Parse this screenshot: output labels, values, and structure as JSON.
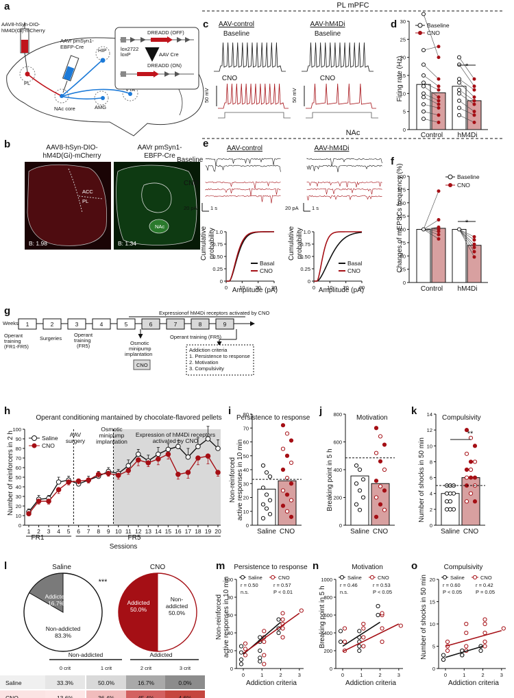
{
  "panel_labels": {
    "a": "a",
    "b": "b",
    "c": "c",
    "d": "d",
    "e": "e",
    "f": "f",
    "g": "g",
    "h": "h",
    "i": "i",
    "j": "j",
    "k": "k",
    "l": "l",
    "m": "m",
    "n": "n",
    "o": "o"
  },
  "headers": {
    "pl_mpfc": "PL mPFC",
    "nac": "NAc"
  },
  "colors": {
    "cno_red": "#a50f15",
    "cno_fill": "#d8a0a0",
    "gray_bg": "#d9d9d9",
    "ctrl_trace": "#111111"
  },
  "a": {
    "inj_gi": [
      "AAV8-hSyn-DIO-",
      "hM4D(Gi)-mCherry"
    ],
    "inj_cre": [
      "AAVr pmSyn1-",
      "EBFP-Cre"
    ],
    "dreadd_off": "DREADD (OFF)",
    "dreadd_on": "DREADD (ON)",
    "lox2722": "lox2722",
    "loxp": "loxP",
    "aav_cre": "AAV Cre",
    "regions": {
      "pl": "PL",
      "hip": "HIP",
      "vta": "VTA",
      "amg": "AMG",
      "nac_core": "NAc core"
    }
  },
  "b": {
    "title_left": [
      "AAV8-hSyn-DIO-",
      "hM4D(Gi)-mCherry"
    ],
    "title_right": [
      "AAVr pmSyn1-",
      "EBFP-Cre"
    ],
    "bregma_left": "B: 1.98",
    "bregma_right": "B: 1.34",
    "small": {
      "acc": "ACC",
      "pl": "PL",
      "nac": "NAc"
    }
  },
  "c": {
    "ctrl_title": "AAV-control",
    "hm4di_title": "AAV-hM4Di",
    "baseline": "Baseline",
    "cno": "CNO",
    "scale": "50 mV"
  },
  "d": {
    "legend": {
      "baseline": "Baseline",
      "cno": "CNO"
    },
    "ylabel": "Firing rate (Hz)",
    "ticks": [
      "0",
      "5",
      "10",
      "15",
      "20",
      "25",
      "30"
    ],
    "groups": [
      "Control",
      "hM4Di"
    ],
    "sig": "*",
    "bars": {
      "control_baseline": 12.5,
      "control_cno": 10.2,
      "hm4di_baseline": 12.0,
      "hm4di_cno": 8.0
    }
  },
  "e": {
    "ctrl_title": "AAV-control",
    "hm4di_title": "AAV-hM4Di",
    "baseline": "Baseline",
    "cno": "CNO",
    "scale_pa": "20 pA",
    "scale_s": "1 s",
    "ylabel": [
      "Cumulative",
      "probability"
    ],
    "xlabel": "Amplitude (pA)",
    "yticks": [
      "0",
      "0.25",
      "0.50",
      "0.75",
      "1.0"
    ],
    "xticks": [
      "0",
      "10",
      "20",
      "30"
    ],
    "legend": {
      "basal": "Basal",
      "cno": "CNO"
    }
  },
  "f": {
    "legend": {
      "baseline": "Baseline",
      "cno": "CNO"
    },
    "ylabel": "Changes of mEPSCs frequency (%)",
    "ticks": [
      "0",
      "25",
      "50",
      "75",
      "100",
      "125",
      "150",
      "175",
      "200"
    ],
    "groups": [
      "Control",
      "hM4Di"
    ],
    "sig": "*",
    "bars": {
      "control_baseline": 100,
      "control_cno": 102,
      "hm4di_baseline": 100,
      "hm4di_cno": 70
    }
  },
  "g": {
    "weeks_label": "Weeks",
    "weeks": [
      "1",
      "2",
      "3",
      "4",
      "5",
      "6",
      "7",
      "8",
      "9"
    ],
    "expression_label": "Expressionof hM4Di receptors activated by CNO",
    "op1": [
      "Operant",
      "training",
      "(FR1-FR5)"
    ],
    "surgeries": "Surgeries",
    "op3": [
      "Operant",
      "training",
      "(FR5)"
    ],
    "osmotic": [
      "Osmotic",
      "minipump",
      "implantation"
    ],
    "cno_box": "CNO",
    "op_fr5": "Operant training (FR5)",
    "criteria": [
      "Addiction criteria",
      "1. Persistence to response",
      "2. Motivation",
      "3. Compulsivity"
    ]
  },
  "h": {
    "title": "Operant conditioning mantained by chocolate-flavored pellets",
    "ylabel": "Number of reinforcers in 2 h",
    "yticks": [
      "0",
      "10",
      "20",
      "30",
      "40",
      "50",
      "60",
      "70",
      "80",
      "90",
      "100"
    ],
    "legend": {
      "saline": "Saline",
      "cno": "CNO"
    },
    "aav": [
      "AAV",
      "surgery"
    ],
    "osmotic": [
      "Osmotic",
      "minipump",
      "implantation"
    ],
    "expr": [
      "Expression of hM4Di receptors",
      "activated by CNO"
    ],
    "fr1": "FR1",
    "fr5": "FR5",
    "xlabel": "Sessions"
  },
  "chart_data": [
    {
      "type": "line",
      "panel": "h",
      "x": [
        1,
        2,
        3,
        4,
        5,
        6,
        7,
        8,
        9,
        10,
        11,
        12,
        13,
        14,
        15,
        16,
        17,
        18,
        19,
        20
      ],
      "series": [
        {
          "name": "Saline",
          "values": [
            14,
            27,
            28,
            45,
            47,
            43,
            47,
            51,
            56,
            54,
            62,
            74,
            67,
            74,
            79,
            82,
            71,
            82,
            90,
            80
          ],
          "err": [
            3,
            4,
            3,
            5,
            4,
            3,
            4,
            5,
            4,
            4,
            6,
            5,
            6,
            7,
            6,
            6,
            9,
            9,
            13,
            9
          ]
        },
        {
          "name": "CNO",
          "values": [
            12,
            25,
            25,
            37,
            45,
            46,
            47,
            53,
            54,
            52,
            57,
            68,
            65,
            69,
            74,
            53,
            55,
            70,
            72,
            55
          ],
          "err": [
            2,
            3,
            3,
            4,
            3,
            3,
            3,
            3,
            3,
            4,
            4,
            6,
            4,
            6,
            5,
            5,
            6,
            7,
            8,
            4
          ]
        }
      ],
      "xlabel": "Sessions",
      "ylabel": "Number of reinforcers in 2 h",
      "ylim": [
        0,
        100
      ]
    },
    {
      "type": "bar",
      "panel": "i",
      "title": "Persistence to response",
      "categories": [
        "Saline",
        "CNO"
      ],
      "values": [
        26,
        32
      ],
      "ylabel": "Non-reinforced active responses in 10 min",
      "ylim": [
        0,
        80
      ],
      "threshold": 33
    },
    {
      "type": "bar",
      "panel": "j",
      "title": "Motivation",
      "categories": [
        "Saline",
        "CNO"
      ],
      "values": [
        355,
        300
      ],
      "ylabel": "Breaking point in 5 h",
      "ylim": [
        0,
        800
      ],
      "threshold": 485
    },
    {
      "type": "bar",
      "panel": "k",
      "title": "Compulsivity",
      "categories": [
        "Saline",
        "CNO"
      ],
      "values": [
        4,
        6
      ],
      "ylabel": "Number of shocks in 50 min",
      "ylim": [
        0,
        14
      ],
      "threshold": 5
    },
    {
      "type": "pie",
      "panel": "l",
      "title": "Saline",
      "labels": [
        "Addicted",
        "Non-addicted"
      ],
      "values": [
        16.7,
        83.3
      ]
    },
    {
      "type": "pie",
      "panel": "l",
      "title": "CNO",
      "labels": [
        "Addicted",
        "Non-addicted"
      ],
      "values": [
        50.0,
        50.0
      ]
    },
    {
      "type": "scatter",
      "panel": "m",
      "title": "Persistence to response",
      "xlabel": "Addiction criteria",
      "ylabel": "Non-reinforced active responses in 10 min",
      "ylim": [
        0,
        100
      ],
      "series": [
        {
          "name": "Saline",
          "r": "r = 0.50",
          "p": "n.s."
        },
        {
          "name": "CNO",
          "r": "r = 0.57",
          "p": "P < 0.01"
        }
      ]
    },
    {
      "type": "scatter",
      "panel": "n",
      "title": "Motivation",
      "xlabel": "Addiction criteria",
      "ylabel": "Breaking point in 5 h",
      "ylim": [
        0,
        1000
      ],
      "series": [
        {
          "name": "Saline",
          "r": "r = 0.46",
          "p": "n.s."
        },
        {
          "name": "CNO",
          "r": "r = 0.53",
          "p": "P < 0.05"
        }
      ]
    },
    {
      "type": "scatter",
      "panel": "o",
      "title": "Compulsivity",
      "xlabel": "Addiction criteria",
      "ylabel": "Number of shocks in 50 min",
      "ylim": [
        0,
        20
      ],
      "series": [
        {
          "name": "Saline",
          "r": "r = 0.60",
          "p": "P < 0.05"
        },
        {
          "name": "CNO",
          "r": "r = 0.42",
          "p": "P = 0.05"
        }
      ]
    }
  ],
  "i": {
    "sig": ""
  },
  "k": {
    "sig": "**"
  },
  "l": {
    "saline_title": "Saline",
    "cno_title": "CNO",
    "sig": "***",
    "sal_add": "Addicted",
    "sal_add_pct": "16.7%",
    "sal_non": "Non-addicted",
    "sal_non_pct": "83.3%",
    "cno_add": "Addicted",
    "cno_add_pct": "50.0%",
    "cno_non": [
      "Non-",
      "addicted",
      "50.0%"
    ],
    "table": {
      "group_non": "Non-addicted",
      "group_add": "Addicted",
      "cols": [
        "0 crit",
        "1 crit",
        "2 crit",
        "3 crit"
      ],
      "rows": [
        {
          "name": "Saline",
          "vals": [
            "33.3%",
            "50.0%",
            "16.7%",
            "0.0%"
          ]
        },
        {
          "name": "CNO",
          "vals": [
            "13.6%",
            "36.4%",
            "45.4%",
            "4.6%"
          ]
        }
      ]
    }
  },
  "mno": {
    "legend": {
      "saline": "Saline",
      "cno": "CNO"
    },
    "xlabel": "Addiction criteria",
    "xticks": [
      "0",
      "1",
      "2",
      "3"
    ],
    "m_ticks": [
      "0",
      "20",
      "40",
      "60",
      "80",
      "100"
    ],
    "n_ticks": [
      "0",
      "200",
      "400",
      "600",
      "800",
      "1000"
    ],
    "o_ticks": [
      "0",
      "5",
      "10",
      "15",
      "20"
    ],
    "m_ylabel": [
      "Non-reinforced",
      "active responses in 10 min"
    ],
    "n_ylabel": "Breaking point in 5 h",
    "o_ylabel": "Number of shocks in 50 min"
  }
}
